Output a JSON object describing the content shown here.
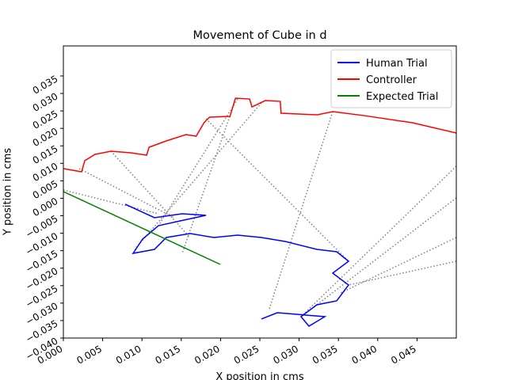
{
  "chart_data": {
    "type": "line",
    "title": "Movement of Cube in d",
    "xlabel": "X position in cms",
    "ylabel": "Y position in cms",
    "xlim": [
      0,
      0.05
    ],
    "ylim": [
      -0.04,
      0.0436
    ],
    "xticks": [
      {
        "value": 0,
        "label": "0.000"
      },
      0.005,
      {
        "value": 0.01,
        "label": "0.010"
      },
      0.015,
      {
        "value": 0.02,
        "label": "0.020"
      },
      0.025,
      {
        "value": 0.03,
        "label": "0.030"
      },
      0.035,
      {
        "value": 0.04,
        "label": "0.040"
      },
      0.045
    ],
    "yticks": [
      {
        "value": -0.04,
        "label": "−0.040"
      },
      {
        "value": -0.035,
        "label": "−0.035"
      },
      {
        "value": -0.03,
        "label": "−0.030"
      },
      {
        "value": -0.025,
        "label": "−0.025"
      },
      {
        "value": -0.02,
        "label": "−0.020"
      },
      {
        "value": -0.015,
        "label": "−0.015"
      },
      {
        "value": -0.01,
        "label": "−0.010"
      },
      {
        "value": -0.005,
        "label": "−0.005"
      },
      {
        "value": 0,
        "label": "0.000"
      },
      0.005,
      {
        "value": 0.01,
        "label": "0.010"
      },
      0.015,
      {
        "value": 0.02,
        "label": "0.020"
      },
      0.025,
      {
        "value": 0.03,
        "label": "0.030"
      },
      0.035
    ],
    "legend": "upper right",
    "series": [
      {
        "name": "Human Trial",
        "color": "#0000ff",
        "x": [
          0.00786,
          0.01159,
          0.01512,
          0.01815,
          0.0121,
          0.01008,
          0.00887,
          0.01159,
          0.0131,
          0.01613,
          0.01915,
          0.02218,
          0.0252,
          0.02823,
          0.03226,
          0.03478,
          0.03629,
          0.03427,
          0.03629,
          0.03478,
          0.03226,
          0.03024,
          0.03125,
          0.03327,
          0.02722,
          0.0252
        ],
        "values": [
          -0.00171,
          -0.00556,
          -0.00443,
          -0.00488,
          -0.00783,
          -0.01168,
          -0.01576,
          -0.01463,
          -0.01123,
          -0.0101,
          -0.01123,
          -0.01055,
          -0.01123,
          -0.01236,
          -0.01463,
          -0.01531,
          -0.01802,
          -0.02142,
          -0.02482,
          -0.02935,
          -0.03048,
          -0.03388,
          -0.0366,
          -0.03388,
          -0.03275,
          -0.03456
        ]
      },
      {
        "name": "Controller",
        "color": "#ff0000",
        "x": [
          0,
          0.00232,
          0.00272,
          0.00403,
          0.00605,
          0.00857,
          0.0106,
          0.0109,
          0.0131,
          0.0156,
          0.0169,
          0.0179,
          0.0186,
          0.0212,
          0.0219,
          0.0237,
          0.024,
          0.0257,
          0.0276,
          0.0277,
          0.0323,
          0.0343,
          0.0383,
          0.0444,
          0.05
        ],
        "values": [
          0.00848,
          0.00757,
          0.01075,
          0.01256,
          0.01347,
          0.01301,
          0.01233,
          0.0146,
          0.01641,
          0.01822,
          0.01777,
          0.02162,
          0.02321,
          0.02343,
          0.02864,
          0.02841,
          0.02615,
          0.02796,
          0.02773,
          0.02433,
          0.02388,
          0.02479,
          0.02365,
          0.02162,
          0.01868
        ]
      },
      {
        "name": "Expected Trial",
        "color": "#008000",
        "x": [
          0,
          0.01,
          0.01996
        ],
        "values": [
          0.00191,
          -0.00851,
          -0.01893
        ]
      },
      {
        "color": "#808080",
        "dash": "dotted",
        "x": [
          0.00202,
          0.01411,
          null,
          0.00605,
          0.01613,
          null,
          0.02218,
          0.0121,
          null,
          0.0252,
          0.00907,
          null,
          0.01815,
          0.03629,
          null,
          0.03427,
          0.02621,
          null,
          0.05,
          0.03024,
          null,
          0.05,
          0.03226,
          null,
          0.05,
          0.03528,
          null,
          0,
          0.0121,
          null,
          0.05,
          0.03629,
          null,
          0.02117,
          0.01512
        ],
        "values": [
          0.00848,
          -0.00556,
          null,
          0.01347,
          -0.01123,
          null,
          0.02841,
          -0.00783,
          null,
          0.02729,
          -0.01463,
          null,
          0.02275,
          -0.01802,
          null,
          0.02479,
          -0.03162,
          null,
          0.00916,
          -0.03388,
          null,
          0.0001,
          -0.03048,
          null,
          -0.01123,
          -0.02709,
          null,
          0.00237,
          -0.00443,
          null,
          -0.01802,
          -0.02482,
          null,
          0.02343,
          -0.01576
        ]
      }
    ]
  }
}
